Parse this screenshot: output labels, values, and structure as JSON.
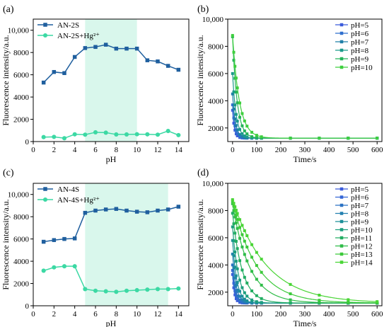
{
  "chart_data": [
    {
      "type": "line",
      "panel_label": "(a)",
      "xlabel": "pH",
      "ylabel": "Fluorescence intensity/a.u.",
      "xlim": [
        0,
        15
      ],
      "ylim": [
        0,
        11000
      ],
      "xticks": [
        0,
        2,
        4,
        6,
        8,
        10,
        12,
        14
      ],
      "yticks": [
        0,
        2000,
        4000,
        6000,
        8000,
        10000
      ],
      "ytick_labels": [
        "0",
        "2000",
        "4000",
        "6000",
        "8000",
        "10,000"
      ],
      "highlight_x": [
        5,
        10
      ],
      "highlight_color": "#d9f7ec",
      "legend_position": "top-left",
      "series": [
        {
          "name": "AN-2S",
          "marker": "square",
          "color": "#1f5f9e",
          "x": [
            1,
            2,
            3,
            4,
            5,
            6,
            7,
            8,
            9,
            10,
            11,
            12,
            13,
            14
          ],
          "y": [
            5300,
            6250,
            6150,
            7600,
            8400,
            8500,
            8700,
            8350,
            8350,
            8350,
            7300,
            7200,
            6800,
            6450
          ]
        },
        {
          "name": "AN-2S+Hg²⁺",
          "marker": "circle",
          "color": "#3cd9a4",
          "x": [
            1,
            2,
            3,
            4,
            5,
            6,
            7,
            8,
            9,
            10,
            11,
            12,
            13,
            14
          ],
          "y": [
            400,
            420,
            300,
            650,
            620,
            830,
            800,
            640,
            640,
            660,
            650,
            620,
            950,
            580
          ]
        }
      ]
    },
    {
      "type": "line",
      "panel_label": "(b)",
      "xlabel": "Time/s",
      "ylabel": "Fluorescence intensity/a.u.",
      "xlim": [
        -20,
        620
      ],
      "ylim": [
        1000,
        10000
      ],
      "xticks": [
        0,
        100,
        200,
        300,
        400,
        500,
        600
      ],
      "yticks": [
        2000,
        4000,
        6000,
        8000,
        10000
      ],
      "ytick_labels": [
        "2000",
        "4000",
        "6000",
        "8000",
        "10,000"
      ],
      "legend_position": "top-right",
      "time_points": [
        0,
        5,
        10,
        15,
        20,
        30,
        40,
        50,
        60,
        80,
        100,
        120,
        240,
        360,
        480,
        600
      ],
      "series": [
        {
          "name": "pH=5",
          "color": "#3b5bdb",
          "y0": 3300,
          "plateau": 1250,
          "tau": 8
        },
        {
          "name": "pH=6",
          "color": "#2f6fce",
          "y0": 3700,
          "plateau": 1250,
          "tau": 10
        },
        {
          "name": "pH=7",
          "color": "#1f7fa8",
          "y0": 4500,
          "plateau": 1250,
          "tau": 12
        },
        {
          "name": "pH=8",
          "color": "#1b9a8a",
          "y0": 6000,
          "plateau": 1250,
          "tau": 15
        },
        {
          "name": "pH=9",
          "color": "#25b35a",
          "y0": 8700,
          "plateau": 1250,
          "tau": 19
        },
        {
          "name": "pH=10",
          "color": "#3ecf3e",
          "y0": 8800,
          "plateau": 1250,
          "tau": 28
        }
      ]
    },
    {
      "type": "line",
      "panel_label": "(c)",
      "xlabel": "pH",
      "ylabel": "Fluorescence intensity/a.u.",
      "xlim": [
        0,
        15
      ],
      "ylim": [
        0,
        11000
      ],
      "xticks": [
        0,
        2,
        4,
        6,
        8,
        10,
        12,
        14
      ],
      "yticks": [
        0,
        2000,
        4000,
        6000,
        8000,
        10000
      ],
      "ytick_labels": [
        "0",
        "2000",
        "4000",
        "6000",
        "8000",
        "10,000"
      ],
      "highlight_x": [
        5,
        13
      ],
      "highlight_color": "#d9f7ec",
      "legend_position": "top-left",
      "series": [
        {
          "name": "AN-4S",
          "marker": "square",
          "color": "#1f5f9e",
          "x": [
            1,
            2,
            3,
            4,
            5,
            6,
            7,
            8,
            9,
            10,
            11,
            12,
            13,
            14
          ],
          "y": [
            5750,
            5900,
            6000,
            6050,
            8350,
            8550,
            8650,
            8700,
            8550,
            8450,
            8400,
            8550,
            8650,
            8900
          ]
        },
        {
          "name": "AN-4S+Hg²⁺",
          "marker": "circle",
          "color": "#3cd9a4",
          "x": [
            1,
            2,
            3,
            4,
            5,
            6,
            7,
            8,
            9,
            10,
            11,
            12,
            13,
            14
          ],
          "y": [
            3150,
            3450,
            3550,
            3550,
            1500,
            1350,
            1300,
            1250,
            1350,
            1400,
            1450,
            1500,
            1500,
            1550
          ]
        }
      ]
    },
    {
      "type": "line",
      "panel_label": "(d)",
      "xlabel": "Time/s",
      "ylabel": "Fluorescence intensity/a.u.",
      "xlim": [
        -20,
        620
      ],
      "ylim": [
        1000,
        10000
      ],
      "xticks": [
        0,
        100,
        200,
        300,
        400,
        500,
        600
      ],
      "yticks": [
        2000,
        4000,
        6000,
        8000,
        10000
      ],
      "ytick_labels": [
        "2000",
        "4000",
        "6000",
        "8000",
        "10,000"
      ],
      "legend_position": "top-right",
      "time_points": [
        0,
        5,
        10,
        15,
        20,
        30,
        40,
        50,
        60,
        80,
        100,
        120,
        240,
        360,
        480,
        600
      ],
      "series": [
        {
          "name": "pH=5",
          "color": "#3b5bdb",
          "y0": 3300,
          "plateau": 1200,
          "tau": 8
        },
        {
          "name": "pH=6",
          "color": "#3566d6",
          "y0": 3600,
          "plateau": 1200,
          "tau": 10
        },
        {
          "name": "pH=7",
          "color": "#2b72c4",
          "y0": 4000,
          "plateau": 1200,
          "tau": 12
        },
        {
          "name": "pH=8",
          "color": "#2380b0",
          "y0": 4800,
          "plateau": 1200,
          "tau": 15
        },
        {
          "name": "pH=9",
          "color": "#1b8f98",
          "y0": 5800,
          "plateau": 1200,
          "tau": 18
        },
        {
          "name": "pH=10",
          "color": "#1c9e7e",
          "y0": 6800,
          "plateau": 1200,
          "tau": 25
        },
        {
          "name": "pH=11",
          "color": "#22ad62",
          "y0": 7800,
          "plateau": 1200,
          "tau": 40
        },
        {
          "name": "pH=12",
          "color": "#2fbc48",
          "y0": 8500,
          "plateau": 1200,
          "tau": 70
        },
        {
          "name": "pH=13",
          "color": "#3cc93a",
          "y0": 8700,
          "plateau": 1200,
          "tau": 100
        },
        {
          "name": "pH=14",
          "color": "#49d535",
          "y0": 8800,
          "plateau": 1200,
          "tau": 140
        }
      ]
    }
  ]
}
